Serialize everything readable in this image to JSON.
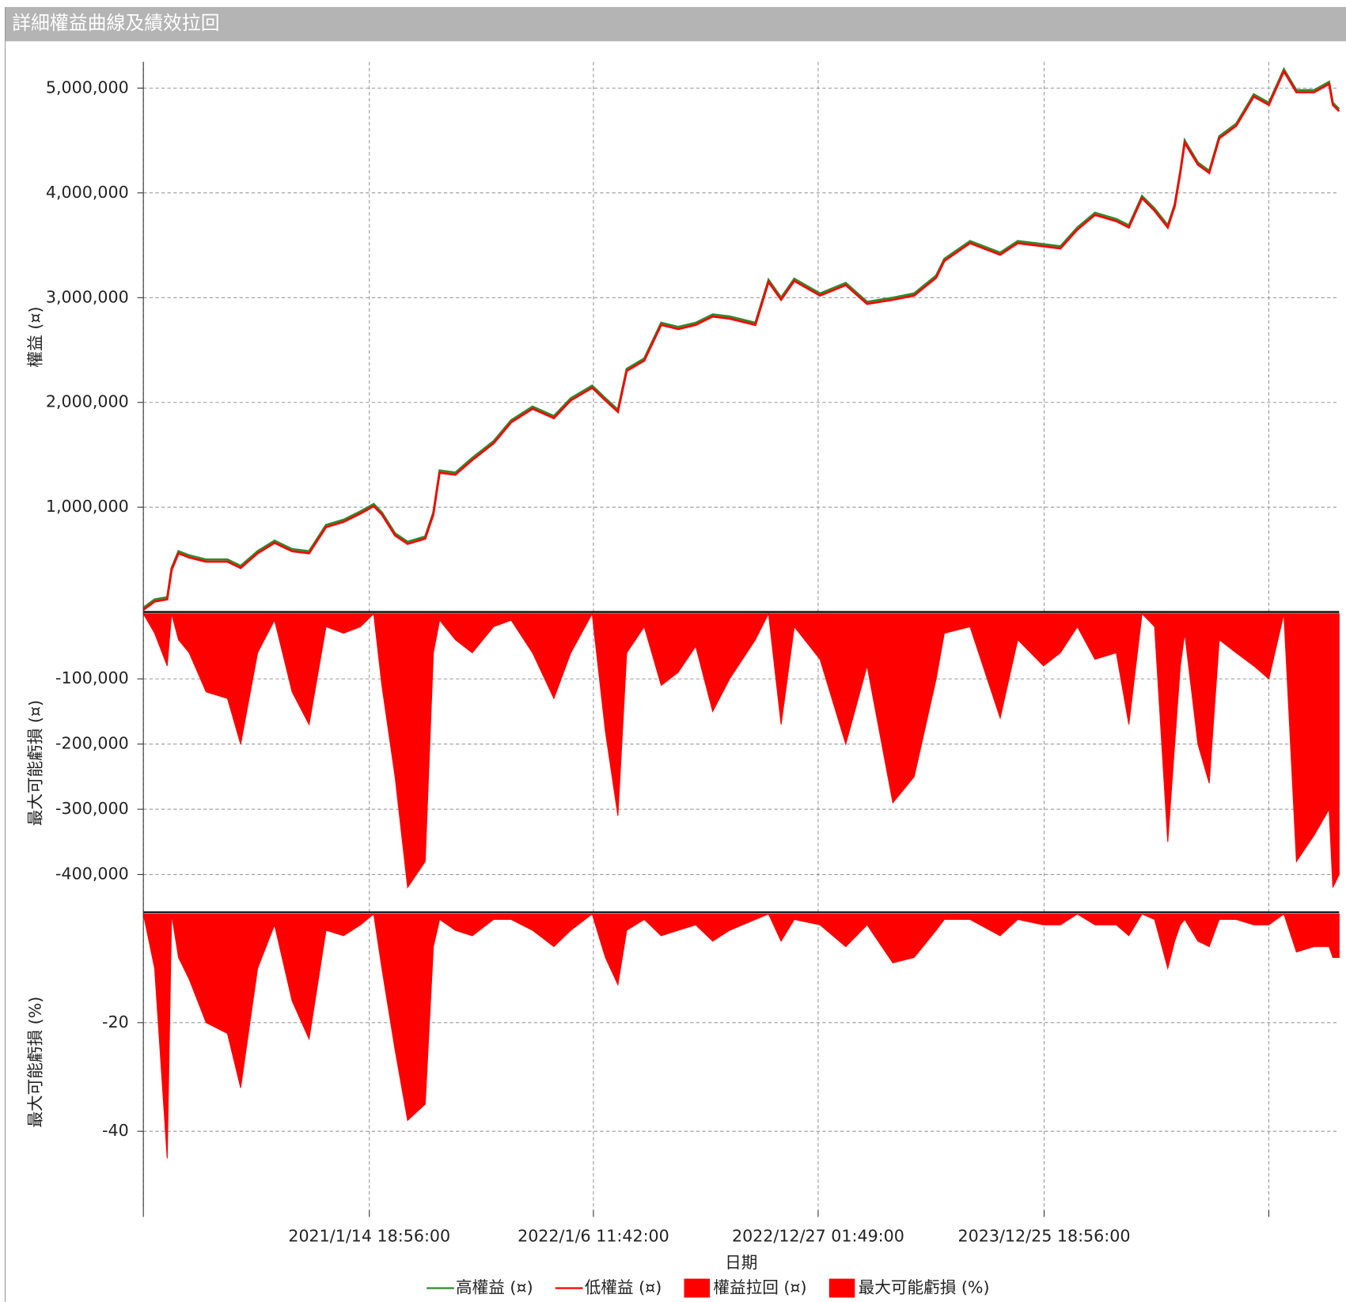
{
  "title": "詳細權益曲線及績效拉回",
  "x_axis": {
    "label": "日期",
    "xlim": [
      0,
      1905
    ],
    "xticks": [
      {
        "value": 0,
        "label": null
      },
      {
        "value": 360,
        "label": "2021/1/14 18:56:00"
      },
      {
        "value": 717,
        "label": "2022/1/6 11:42:00"
      },
      {
        "value": 1075,
        "label": "2022/12/27 01:49:00"
      },
      {
        "value": 1435,
        "label": "2023/12/25 18:56:00"
      },
      {
        "value": 1793,
        "label": null
      }
    ],
    "x": [
      0,
      18,
      38,
      45,
      56,
      73,
      100,
      134,
      155,
      182,
      209,
      237,
      264,
      291,
      319,
      346,
      367,
      380,
      401,
      421,
      449,
      462,
      472,
      497,
      524,
      558,
      586,
      620,
      654,
      681,
      715,
      736,
      756,
      770,
      798,
      825,
      852,
      880,
      907,
      934,
      975,
      996,
      1016,
      1037,
      1078,
      1119,
      1153,
      1194,
      1228,
      1263,
      1276,
      1317,
      1365,
      1393,
      1434,
      1461,
      1488,
      1516,
      1550,
      1570,
      1591,
      1611,
      1632,
      1643,
      1652,
      1659,
      1680,
      1698,
      1714,
      1741,
      1769,
      1793,
      1817,
      1837,
      1865,
      1889,
      1895,
      1905
    ]
  },
  "legend": "bottom",
  "chart_data": [
    {
      "type": "line",
      "ylabel": "權益 (¤)",
      "ylim": [
        0,
        5250000
      ],
      "grid": true,
      "yticks": [
        {
          "value": 1000000,
          "label": "1,000,000"
        },
        {
          "value": 2000000,
          "label": "2,000,000"
        },
        {
          "value": 3000000,
          "label": "3,000,000"
        },
        {
          "value": 4000000,
          "label": "4,000,000"
        },
        {
          "value": 5000000,
          "label": "5,000,000"
        }
      ],
      "series": [
        {
          "name": "高權益 (¤)",
          "color": "#2e8b2e",
          "values": [
            40000,
            120000,
            140000,
            420000,
            580000,
            540000,
            500000,
            500000,
            440000,
            580000,
            680000,
            600000,
            580000,
            830000,
            880000,
            960000,
            1030000,
            950000,
            750000,
            670000,
            720000,
            950000,
            1350000,
            1330000,
            1470000,
            1630000,
            1830000,
            1960000,
            1870000,
            2040000,
            2160000,
            2040000,
            1930000,
            2320000,
            2420000,
            2760000,
            2720000,
            2760000,
            2840000,
            2820000,
            2760000,
            3170000,
            3000000,
            3180000,
            3040000,
            3140000,
            2960000,
            3000000,
            3040000,
            3210000,
            3370000,
            3540000,
            3430000,
            3540000,
            3510000,
            3490000,
            3670000,
            3810000,
            3750000,
            3690000,
            3970000,
            3850000,
            3690000,
            3890000,
            4210000,
            4500000,
            4290000,
            4210000,
            4540000,
            4660000,
            4940000,
            4860000,
            5180000,
            4980000,
            4980000,
            5060000,
            4860000,
            4800000
          ]
        },
        {
          "name": "低權益 (¤)",
          "color": "#ff0000",
          "values": [
            20000,
            100000,
            120000,
            400000,
            560000,
            520000,
            480000,
            480000,
            420000,
            560000,
            660000,
            580000,
            560000,
            810000,
            860000,
            940000,
            1010000,
            930000,
            730000,
            650000,
            700000,
            930000,
            1330000,
            1310000,
            1450000,
            1610000,
            1810000,
            1940000,
            1850000,
            2020000,
            2140000,
            2020000,
            1910000,
            2300000,
            2400000,
            2740000,
            2700000,
            2740000,
            2820000,
            2800000,
            2740000,
            3150000,
            2980000,
            3160000,
            3020000,
            3120000,
            2940000,
            2980000,
            3020000,
            3190000,
            3350000,
            3520000,
            3410000,
            3520000,
            3490000,
            3470000,
            3650000,
            3790000,
            3730000,
            3670000,
            3950000,
            3830000,
            3670000,
            3870000,
            4190000,
            4480000,
            4270000,
            4190000,
            4520000,
            4640000,
            4920000,
            4840000,
            5160000,
            4960000,
            4960000,
            5040000,
            4840000,
            4780000
          ]
        }
      ]
    },
    {
      "type": "area",
      "ylabel": "最大可能虧損 (¤)",
      "ylim": [
        -458000,
        0
      ],
      "grid": true,
      "yticks": [
        {
          "value": -400000,
          "label": "-400,000"
        },
        {
          "value": -300000,
          "label": "-300,000"
        },
        {
          "value": -200000,
          "label": "-200,000"
        },
        {
          "value": -100000,
          "label": "-100,000"
        }
      ],
      "series": [
        {
          "name": "權益拉回 (¤)",
          "color": "#ff0000",
          "values": [
            0,
            -30000,
            -80000,
            0,
            -40000,
            -60000,
            -120000,
            -130000,
            -200000,
            -60000,
            -10000,
            -120000,
            -170000,
            -20000,
            -30000,
            -20000,
            0,
            -110000,
            -250000,
            -420000,
            -380000,
            -60000,
            -10000,
            -40000,
            -60000,
            -20000,
            -10000,
            -60000,
            -130000,
            -60000,
            0,
            -180000,
            -310000,
            -60000,
            -20000,
            -110000,
            -90000,
            -50000,
            -150000,
            -100000,
            -40000,
            0,
            -170000,
            -20000,
            -70000,
            -200000,
            -80000,
            -290000,
            -250000,
            -100000,
            -30000,
            -20000,
            -160000,
            -40000,
            -80000,
            -60000,
            -20000,
            -70000,
            -60000,
            -170000,
            0,
            -20000,
            -350000,
            -200000,
            -80000,
            -30000,
            -200000,
            -260000,
            -40000,
            -60000,
            -80000,
            -100000,
            0,
            -380000,
            -340000,
            -300000,
            -420000,
            -400000
          ]
        }
      ]
    },
    {
      "type": "area",
      "ylabel": "最大可能虧損 (%)",
      "ylim": [
        -54.5,
        0
      ],
      "grid": true,
      "yticks": [
        -40,
        -20
      ],
      "series": [
        {
          "name": "最大可能虧損 (%)",
          "color": "#ff0000",
          "values": [
            0,
            -10,
            -45,
            0,
            -8,
            -12,
            -20,
            -22,
            -32,
            -10,
            -2,
            -16,
            -23,
            -3,
            -4,
            -2,
            0,
            -10,
            -25,
            -38,
            -35,
            -6,
            -1,
            -3,
            -4,
            -1,
            -1,
            -3,
            -6,
            -3,
            0,
            -8,
            -13,
            -3,
            -1,
            -4,
            -3,
            -2,
            -5,
            -3,
            -1,
            0,
            -5,
            -1,
            -2,
            -6,
            -2,
            -9,
            -8,
            -3,
            -1,
            -1,
            -4,
            -1,
            -2,
            -2,
            0,
            -2,
            -2,
            -4,
            0,
            -1,
            -10,
            -5,
            -2,
            -1,
            -5,
            -6,
            -1,
            -1,
            -2,
            -2,
            0,
            -7,
            -6,
            -6,
            -8,
            -8
          ]
        }
      ]
    }
  ]
}
